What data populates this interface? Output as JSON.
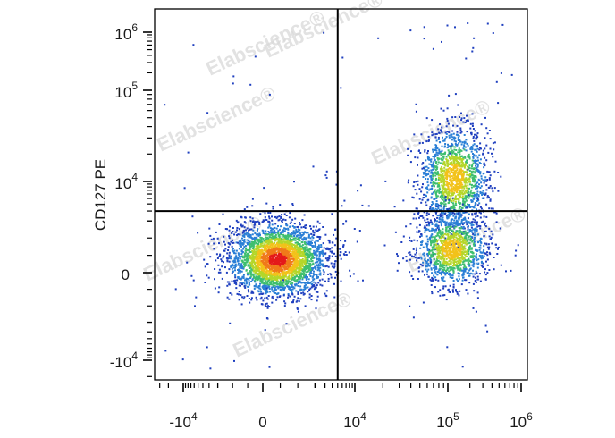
{
  "chart_data": {
    "type": "scatter",
    "subtype": "flow-cytometry-density-dot-plot",
    "ylabel": "CD127 PE",
    "xlabel": "",
    "scale": "biexponential",
    "xlim": [
      -20000,
      1400000
    ],
    "ylim": [
      -20000,
      1400000
    ],
    "x_ticks": [
      {
        "value": -10000,
        "base": "-10",
        "exp": "4"
      },
      {
        "value": 0,
        "base": "0",
        "exp": ""
      },
      {
        "value": 10000,
        "base": "10",
        "exp": "4"
      },
      {
        "value": 100000,
        "base": "10",
        "exp": "5"
      },
      {
        "value": 1000000,
        "base": "10",
        "exp": "6"
      }
    ],
    "y_ticks": [
      {
        "value": -10000,
        "base": "-10",
        "exp": "4"
      },
      {
        "value": 0,
        "base": "0",
        "exp": ""
      },
      {
        "value": 10000,
        "base": "10",
        "exp": "4"
      },
      {
        "value": 100000,
        "base": "10",
        "exp": "5"
      },
      {
        "value": 1000000,
        "base": "10",
        "exp": "6"
      }
    ],
    "quadrant_gate": {
      "x": 5000,
      "y": 3000
    },
    "populations": [
      {
        "center": [
          400,
          400
        ],
        "count": 3200,
        "density": "high"
      },
      {
        "center": [
          120000,
          11000
        ],
        "count": 1500,
        "density": "medium"
      },
      {
        "center": [
          110000,
          700
        ],
        "count": 1300,
        "density": "medium"
      }
    ],
    "colormap": [
      "#1f3fbf",
      "#2a7fd6",
      "#3fbf6f",
      "#b5d62a",
      "#f2c21a",
      "#f07a1a",
      "#e41a1a"
    ],
    "grid": false
  },
  "watermark": {
    "text": "Elabscience",
    "mark": "®"
  }
}
